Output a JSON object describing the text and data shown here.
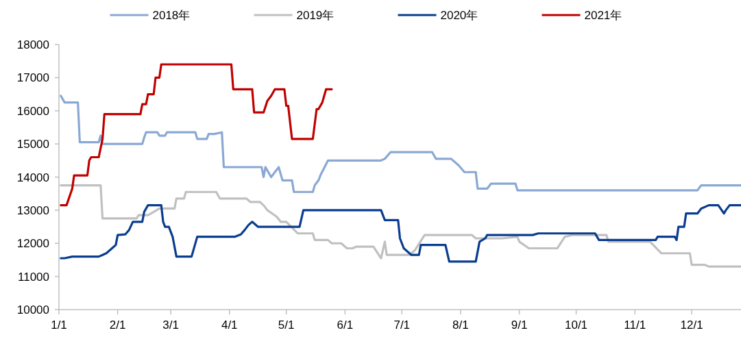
{
  "chart_data": {
    "type": "line",
    "xlim": [
      "--01-01",
      "--12-27"
    ],
    "xticks": [
      {
        "value": "--01-01",
        "label": "1/1"
      },
      {
        "value": "--02-01",
        "label": "2/1"
      },
      {
        "value": "--03-01",
        "label": "3/1"
      },
      {
        "value": "--04-01",
        "label": "4/1"
      },
      {
        "value": "--05-01",
        "label": "5/1"
      },
      {
        "value": "--06-01",
        "label": "6/1"
      },
      {
        "value": "--07-01",
        "label": "7/1"
      },
      {
        "value": "--08-01",
        "label": "8/1"
      },
      {
        "value": "--09-01",
        "label": "9/1"
      },
      {
        "value": "--10-01",
        "label": "10/1"
      },
      {
        "value": "--11-01",
        "label": "11/1"
      },
      {
        "value": "--12-01",
        "label": "12/1"
      }
    ],
    "ylim": [
      10000,
      18000
    ],
    "yticks": [
      10000,
      11000,
      12000,
      13000,
      14000,
      15000,
      16000,
      17000,
      18000
    ],
    "grid": false,
    "legend": "top",
    "marker": "none",
    "line_style": "solid",
    "series": [
      {
        "name": "2018年",
        "color": "#8aa8d4",
        "x": [
          "--01-02",
          "--01-04",
          "--01-11",
          "--01-12",
          "--01-22",
          "--01-23",
          "--01-24",
          "--02-14",
          "--02-15",
          "--02-16",
          "--02-22",
          "--02-23",
          "--02-26",
          "--02-27",
          "--03-14",
          "--03-15",
          "--03-20",
          "--03-21",
          "--03-24",
          "--03-28",
          "--03-29",
          "--04-18",
          "--04-19",
          "--04-20",
          "--04-23",
          "--04-27",
          "--04-29",
          "--05-04",
          "--05-05",
          "--05-15",
          "--05-16",
          "--05-18",
          "--05-19",
          "--05-23",
          "--06-20",
          "--06-22",
          "--06-25",
          "--07-17",
          "--07-19",
          "--07-27",
          "--07-31",
          "--08-03",
          "--08-09",
          "--08-10",
          "--08-15",
          "--08-17",
          "--08-30",
          "--08-31",
          "--12-04",
          "--12-06",
          "--12-27"
        ],
        "values": [
          16450,
          16250,
          16250,
          15050,
          15050,
          15250,
          15000,
          15000,
          15200,
          15350,
          15350,
          15250,
          15250,
          15350,
          15350,
          15150,
          15150,
          15300,
          15300,
          15350,
          14300,
          14300,
          14000,
          14300,
          14000,
          14300,
          13900,
          13900,
          13550,
          13550,
          13750,
          13900,
          14050,
          14500,
          14500,
          14550,
          14750,
          14750,
          14550,
          14550,
          14350,
          14150,
          14150,
          13650,
          13650,
          13800,
          13800,
          13600,
          13600,
          13750,
          13750
        ]
      },
      {
        "name": "2019年",
        "color": "#c0c0c0",
        "x": [
          "--01-02",
          "--01-23",
          "--01-24",
          "--02-11",
          "--02-12",
          "--02-17",
          "--02-20",
          "--02-23",
          "--03-03",
          "--03-04",
          "--03-08",
          "--03-09",
          "--03-25",
          "--03-27",
          "--04-10",
          "--04-12",
          "--04-17",
          "--04-19",
          "--04-21",
          "--04-26",
          "--04-28",
          "--05-01",
          "--05-07",
          "--05-15",
          "--05-16",
          "--05-23",
          "--05-25",
          "--05-30",
          "--06-02",
          "--06-05",
          "--06-07",
          "--06-16",
          "--06-20",
          "--06-22",
          "--06-23",
          "--07-05",
          "--07-08",
          "--07-13",
          "--08-07",
          "--08-09",
          "--08-23",
          "--08-31",
          "--09-01",
          "--09-06",
          "--09-21",
          "--09-25",
          "--09-29",
          "--10-17",
          "--10-18",
          "--11-09",
          "--11-15",
          "--11-30",
          "--12-01",
          "--12-08",
          "--12-10",
          "--12-27"
        ],
        "values": [
          13750,
          13750,
          12750,
          12750,
          12850,
          12850,
          12950,
          13050,
          13050,
          13350,
          13350,
          13550,
          13550,
          13350,
          13350,
          13250,
          13250,
          13150,
          13000,
          12800,
          12650,
          12650,
          12300,
          12300,
          12100,
          12100,
          12000,
          12000,
          11850,
          11850,
          11900,
          11900,
          11550,
          12050,
          11650,
          11650,
          11800,
          12250,
          12250,
          12150,
          12150,
          12200,
          12050,
          11850,
          11850,
          12200,
          12250,
          12250,
          12050,
          12050,
          11700,
          11700,
          11350,
          11350,
          11300,
          11300
        ]
      },
      {
        "name": "2020年",
        "color": "#0a3d8f",
        "x": [
          "--01-02",
          "--01-04",
          "--01-08",
          "--01-22",
          "--01-24",
          "--01-26",
          "--01-29",
          "--01-31",
          "--02-01",
          "--02-05",
          "--02-07",
          "--02-09",
          "--02-14",
          "--02-15",
          "--02-17",
          "--02-24",
          "--02-25",
          "--02-26",
          "--02-28",
          "--03-02",
          "--03-04",
          "--03-12",
          "--03-15",
          "--04-04",
          "--04-07",
          "--04-09",
          "--04-11",
          "--04-13",
          "--04-16",
          "--05-08",
          "--05-10",
          "--06-20",
          "--06-22",
          "--06-29",
          "--06-30",
          "--07-02",
          "--07-05",
          "--07-06",
          "--07-10",
          "--07-11",
          "--07-24",
          "--07-26",
          "--08-09",
          "--08-11",
          "--08-14",
          "--08-15",
          "--09-08",
          "--09-11",
          "--10-11",
          "--10-13",
          "--11-12",
          "--11-13",
          "--11-22",
          "--11-23",
          "--11-24",
          "--11-27",
          "--11-28",
          "--12-04",
          "--12-06",
          "--12-10",
          "--12-15",
          "--12-18",
          "--12-19",
          "--12-21",
          "--12-27"
        ],
        "values": [
          11550,
          11550,
          11600,
          11600,
          11650,
          11700,
          11850,
          11950,
          12250,
          12270,
          12400,
          12650,
          12650,
          12950,
          13150,
          13150,
          12650,
          12500,
          12500,
          12200,
          11600,
          11600,
          12200,
          12200,
          12270,
          12400,
          12550,
          12650,
          12500,
          12500,
          13000,
          13000,
          12700,
          12700,
          12150,
          11850,
          11700,
          11650,
          11650,
          11950,
          11950,
          11450,
          11450,
          12050,
          12150,
          12250,
          12250,
          12300,
          12300,
          12100,
          12100,
          12200,
          12200,
          12100,
          12500,
          12500,
          12900,
          12900,
          13050,
          13150,
          13150,
          12900,
          13000,
          13150,
          13150
        ]
      },
      {
        "name": "2021年",
        "color": "#c00000",
        "x": [
          "--01-02",
          "--01-05",
          "--01-08",
          "--01-09",
          "--01-16",
          "--01-17",
          "--01-18",
          "--01-22",
          "--01-24",
          "--01-25",
          "--02-13",
          "--02-14",
          "--02-16",
          "--02-17",
          "--02-20",
          "--02-21",
          "--02-23",
          "--02-24",
          "--04-02",
          "--04-03",
          "--04-13",
          "--04-14",
          "--04-19",
          "--04-21",
          "--04-23",
          "--04-25",
          "--04-30",
          "--05-01",
          "--05-02",
          "--05-04",
          "--05-15",
          "--05-17",
          "--05-18",
          "--05-20",
          "--05-22",
          "--05-25"
        ],
        "values": [
          13150,
          13150,
          13650,
          14050,
          14050,
          14500,
          14600,
          14600,
          15150,
          15900,
          15900,
          16200,
          16200,
          16500,
          16500,
          17000,
          17000,
          17400,
          17400,
          16650,
          16650,
          15950,
          15950,
          16300,
          16450,
          16650,
          16650,
          16150,
          16150,
          15150,
          15150,
          16050,
          16050,
          16250,
          16650,
          16650
        ]
      }
    ]
  }
}
